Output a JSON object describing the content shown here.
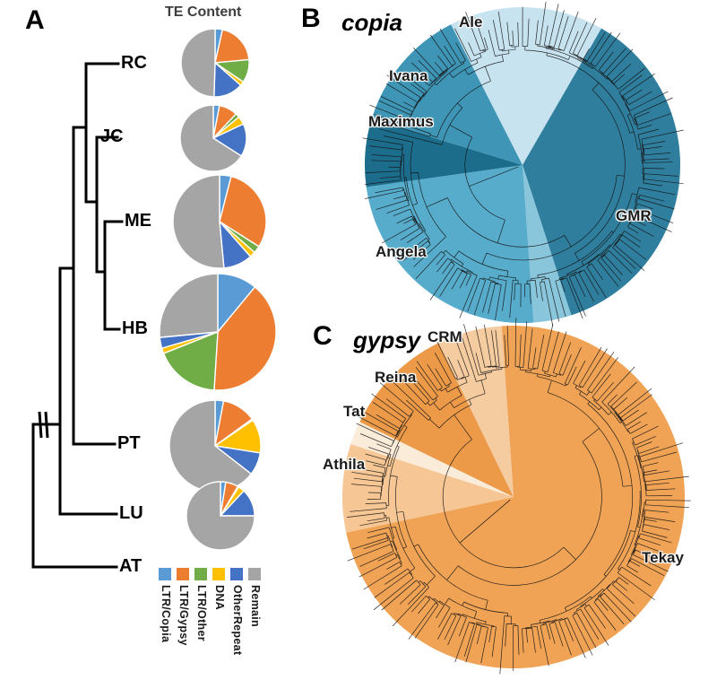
{
  "panels": {
    "a": "A",
    "b": "B",
    "c": "C"
  },
  "panelA": {
    "tree_tips": [
      "RC",
      "JC",
      "ME",
      "HB",
      "PT",
      "LU",
      "AT"
    ],
    "topology": "((((RC,(JC,(ME,HB))),PT),LU),AT)",
    "branch_break_marks": true
  },
  "chart_data": [
    {
      "type": "pie",
      "title": "TE Content",
      "legend_position": "bottom",
      "categories": [
        "LTR/Copia",
        "LTR/Gypsy",
        "LTR/Other",
        "DNA",
        "OtherRepeat",
        "Remain"
      ],
      "colors": [
        "#5B9BD5",
        "#ED7D31",
        "#70AD47",
        "#FFC000",
        "#4472C4",
        "#A5A5A5"
      ],
      "series": [
        {
          "name": "RC",
          "values": [
            3.5,
            20,
            11,
            2,
            14,
            49.5
          ]
        },
        {
          "name": "JC",
          "values": [
            3,
            9,
            2,
            4,
            16,
            66
          ]
        },
        {
          "name": "ME",
          "values": [
            4,
            30,
            2.5,
            2,
            10,
            51.5
          ]
        },
        {
          "name": "HB",
          "values": [
            11,
            40,
            18,
            1.5,
            3,
            26.5
          ]
        },
        {
          "name": "PT",
          "values": [
            3,
            12,
            0.5,
            12,
            8,
            64.5
          ]
        },
        {
          "name": "LU",
          "values": [
            2.5,
            6,
            0.5,
            3,
            13,
            75
          ]
        }
      ]
    },
    {
      "type": "radial-tree",
      "title": "copia",
      "clades": [
        {
          "name": "Ale",
          "color": "#C8E3F0",
          "start": -27,
          "end": 30
        },
        {
          "name": "GMR",
          "color": "#2F7E9D",
          "start": 30,
          "end": 162
        },
        {
          "name": "",
          "color": "#8AC6DB",
          "start": 162,
          "end": 176
        },
        {
          "name": "Angela",
          "color": "#57ACCB",
          "start": 176,
          "end": 262
        },
        {
          "name": "Maximus",
          "color": "#1C6D8C",
          "start": 262,
          "end": 287
        },
        {
          "name": "Ivana",
          "color": "#3E95B5",
          "start": 287,
          "end": 333
        }
      ]
    },
    {
      "type": "radial-tree",
      "title": "gypsy",
      "clades": [
        {
          "name": "Tekay",
          "color": "#F0A355",
          "start": -4,
          "end": 258
        },
        {
          "name": "Athila",
          "color": "#F6C794",
          "start": 258,
          "end": 288
        },
        {
          "name": "Tat",
          "color": "#FBEBD9",
          "start": 288,
          "end": 296
        },
        {
          "name": "Reina",
          "color": "#EC9A48",
          "start": 296,
          "end": 334
        },
        {
          "name": "CRM",
          "color": "#F5CBA0",
          "start": 334,
          "end": 356
        }
      ]
    }
  ]
}
